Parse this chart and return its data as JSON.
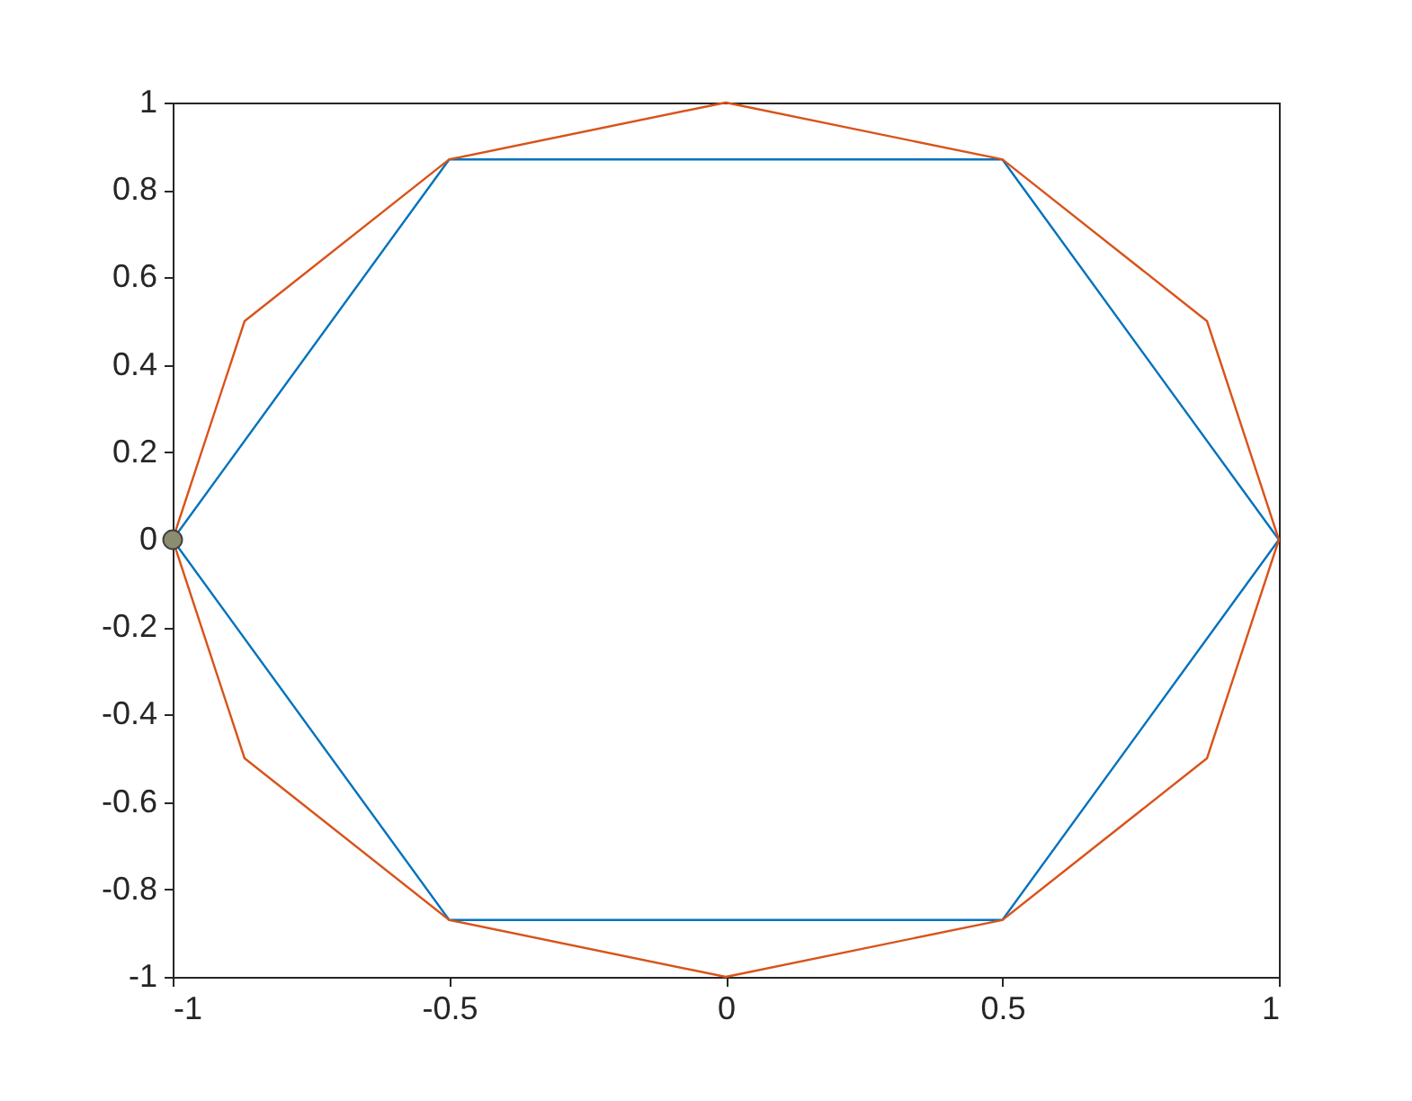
{
  "chart_data": {
    "type": "line",
    "xlim": [
      -1,
      1
    ],
    "ylim": [
      -1,
      1
    ],
    "xticks": [
      -1,
      -0.5,
      0,
      0.5,
      1
    ],
    "yticks": [
      -1,
      -0.8,
      -0.6,
      -0.4,
      -0.2,
      0,
      0.2,
      0.4,
      0.6,
      0.8,
      1
    ],
    "marker": "none",
    "line_style": "solid",
    "series": [
      {
        "color": "#0072bd",
        "x": [
          -1,
          -0.5,
          0.5,
          1
        ],
        "values": [
          0,
          0.87,
          0.87,
          0
        ]
      },
      {
        "color": "#0072bd",
        "x": [
          -1,
          -0.5,
          0.5,
          1
        ],
        "values": [
          0,
          -0.87,
          -0.87,
          0
        ]
      },
      {
        "color": "#d95319",
        "x": [
          -1,
          -0.87,
          -0.5,
          0,
          0.5,
          0.87,
          1
        ],
        "values": [
          0,
          0.5,
          0.87,
          1,
          0.87,
          0.5,
          0
        ]
      },
      {
        "color": "#d95319",
        "x": [
          -1,
          -0.87,
          -0.5,
          0,
          0.5,
          0.87,
          1
        ],
        "values": [
          0,
          -0.5,
          -0.87,
          -1,
          -0.87,
          -0.5,
          0
        ]
      },
      {
        "type": "scatter",
        "marker": "circle",
        "color": "#8c8c70",
        "x": [
          -1
        ],
        "values": [
          0
        ]
      }
    ]
  }
}
